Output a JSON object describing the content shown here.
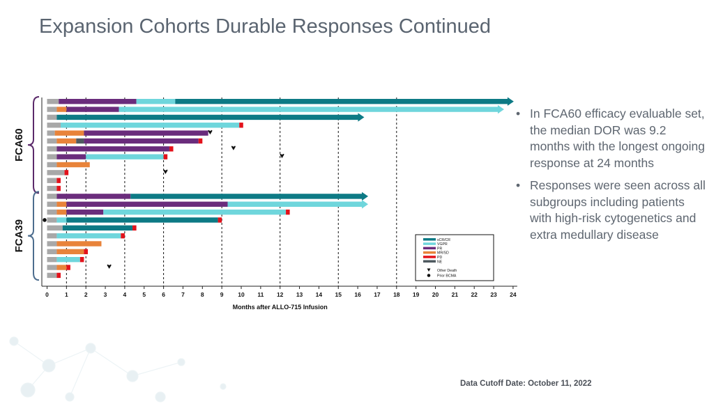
{
  "title": "Expansion Cohorts Durable Responses Continued",
  "bullets": [
    "In FCA60 efficacy evaluable set, the median DOR was 9.2 months with the longest ongoing response at 24 months",
    "Responses were seen across all subgroups including patients with high-risk cytogenetics and extra medullary disease"
  ],
  "bullet_glyph": "•",
  "footer": "Data Cutoff Date: October 11, 2022",
  "colors": {
    "sCR/CR": "#0d7a85",
    "VGPR": "#6fd6dc",
    "PR": "#6a2c7c",
    "MR/SD": "#e8833a",
    "PD": "#e3121b",
    "NE": "#4f5a60",
    "pre": "#a8a8a8",
    "bracket_FCA60": "#5b2a6a",
    "bracket_FCA39": "#4d6d8e"
  },
  "chart_data": {
    "type": "swimmer",
    "xlabel": "Months after ALLO-715 Infusion",
    "xlim": [
      0,
      24
    ],
    "x_ticks": [
      "0",
      "1",
      "2",
      "3",
      "4",
      "5",
      "6",
      "7",
      "8",
      "9",
      "10",
      "11",
      "12",
      "13",
      "14",
      "15",
      "16",
      "17",
      "18",
      "19",
      "20",
      "21",
      "22",
      "23",
      "24"
    ],
    "reference_lines": [
      1,
      2,
      4,
      6,
      9,
      12,
      15,
      18
    ],
    "groups": [
      {
        "name": "FCA60",
        "rows": [
          0,
          11
        ]
      },
      {
        "name": "FCA39",
        "rows": [
          12,
          22
        ]
      }
    ],
    "legend": {
      "items": [
        "sCR/CR",
        "VGPR",
        "PR",
        "MR/SD",
        "PD",
        "NE",
        "Other Death",
        "Prior BCMA"
      ]
    },
    "patients": [
      {
        "segments": [
          [
            "pre",
            0,
            0.6
          ],
          [
            "PR",
            0.6,
            4.6
          ],
          [
            "VGPR",
            4.6,
            6.6
          ],
          [
            "sCR/CR",
            6.6,
            24
          ]
        ],
        "ongoing": true
      },
      {
        "segments": [
          [
            "pre",
            0,
            0.5
          ],
          [
            "MR/SD",
            0.5,
            1
          ],
          [
            "PR",
            1,
            3.7
          ],
          [
            "VGPR",
            3.7,
            23.5
          ]
        ],
        "ongoing": true
      },
      {
        "segments": [
          [
            "pre",
            0,
            0.5
          ],
          [
            "sCR/CR",
            0.5,
            16.3
          ]
        ],
        "ongoing": true
      },
      {
        "segments": [
          [
            "pre",
            0,
            0.7
          ],
          [
            "VGPR",
            0.7,
            9.9
          ],
          [
            "PD",
            9.9,
            10.1
          ]
        ]
      },
      {
        "segments": [
          [
            "pre",
            0,
            0.4
          ],
          [
            "MR/SD",
            0.4,
            1.9
          ],
          [
            "PR",
            1.9,
            8.3
          ]
        ],
        "death": 8.4
      },
      {
        "segments": [
          [
            "pre",
            0,
            0.5
          ],
          [
            "MR/SD",
            0.5,
            1.5
          ],
          [
            "NE",
            1.5,
            1.9
          ],
          [
            "PR",
            1.9,
            7.8
          ],
          [
            "PD",
            7.8,
            8.0
          ]
        ]
      },
      {
        "segments": [
          [
            "pre",
            0,
            0.5
          ],
          [
            "PR",
            0.5,
            6.3
          ],
          [
            "PD",
            6.3,
            6.5
          ]
        ],
        "death": 9.6
      },
      {
        "segments": [
          [
            "pre",
            0,
            0.5
          ],
          [
            "PR",
            0.5,
            2
          ],
          [
            "VGPR",
            2,
            6
          ],
          [
            "PD",
            6,
            6.2
          ]
        ],
        "death": 12.1
      },
      {
        "segments": [
          [
            "pre",
            0,
            0.5
          ],
          [
            "MR/SD",
            0.5,
            2.2
          ]
        ]
      },
      {
        "segments": [
          [
            "pre",
            0,
            0.9
          ],
          [
            "PD",
            0.9,
            1.1
          ]
        ],
        "death": 6.1
      },
      {
        "segments": [
          [
            "pre",
            0,
            0.5
          ],
          [
            "PD",
            0.5,
            0.7
          ]
        ]
      },
      {
        "segments": [
          [
            "pre",
            0,
            0.5
          ],
          [
            "PD",
            0.5,
            0.7
          ]
        ]
      },
      {
        "segments": [
          [
            "pre",
            0,
            0.5
          ],
          [
            "PR",
            0.5,
            4.3
          ],
          [
            "sCR/CR",
            4.3,
            16.5
          ]
        ],
        "ongoing": true
      },
      {
        "segments": [
          [
            "pre",
            0,
            0.5
          ],
          [
            "MR/SD",
            0.5,
            1
          ],
          [
            "PR",
            1,
            9.3
          ],
          [
            "VGPR",
            9.3,
            16.5
          ]
        ],
        "ongoing": true
      },
      {
        "segments": [
          [
            "pre",
            0,
            0.5
          ],
          [
            "MR/SD",
            0.5,
            1
          ],
          [
            "PR",
            1,
            2.9
          ],
          [
            "VGPR",
            2.9,
            12.3
          ],
          [
            "PD",
            12.3,
            12.5
          ]
        ]
      },
      {
        "segments": [
          [
            "pre",
            0,
            0.5
          ],
          [
            "VGPR",
            0.5,
            1
          ],
          [
            "sCR/CR",
            1,
            8.8
          ],
          [
            "PD",
            8.8,
            9
          ]
        ],
        "prior_bcma": true
      },
      {
        "segments": [
          [
            "pre",
            0,
            0.8
          ],
          [
            "sCR/CR",
            0.8,
            4.4
          ],
          [
            "PD",
            4.4,
            4.6
          ]
        ]
      },
      {
        "segments": [
          [
            "pre",
            0,
            0.5
          ],
          [
            "VGPR",
            0.5,
            3.8
          ],
          [
            "PD",
            3.8,
            4
          ]
        ]
      },
      {
        "segments": [
          [
            "pre",
            0,
            0.5
          ],
          [
            "MR/SD",
            0.5,
            2.8
          ]
        ]
      },
      {
        "segments": [
          [
            "pre",
            0,
            0.5
          ],
          [
            "MR/SD",
            0.5,
            1.9
          ],
          [
            "PD",
            1.9,
            2.1
          ]
        ]
      },
      {
        "segments": [
          [
            "pre",
            0,
            0.5
          ],
          [
            "VGPR",
            0.5,
            1.7
          ],
          [
            "PD",
            1.7,
            1.9
          ]
        ]
      },
      {
        "segments": [
          [
            "pre",
            0,
            0.5
          ],
          [
            "MR/SD",
            0.5,
            1
          ],
          [
            "PD",
            1,
            1.2
          ]
        ],
        "death": 3.2
      },
      {
        "segments": [
          [
            "pre",
            0,
            0.5
          ],
          [
            "PD",
            0.5,
            0.7
          ]
        ]
      }
    ]
  }
}
